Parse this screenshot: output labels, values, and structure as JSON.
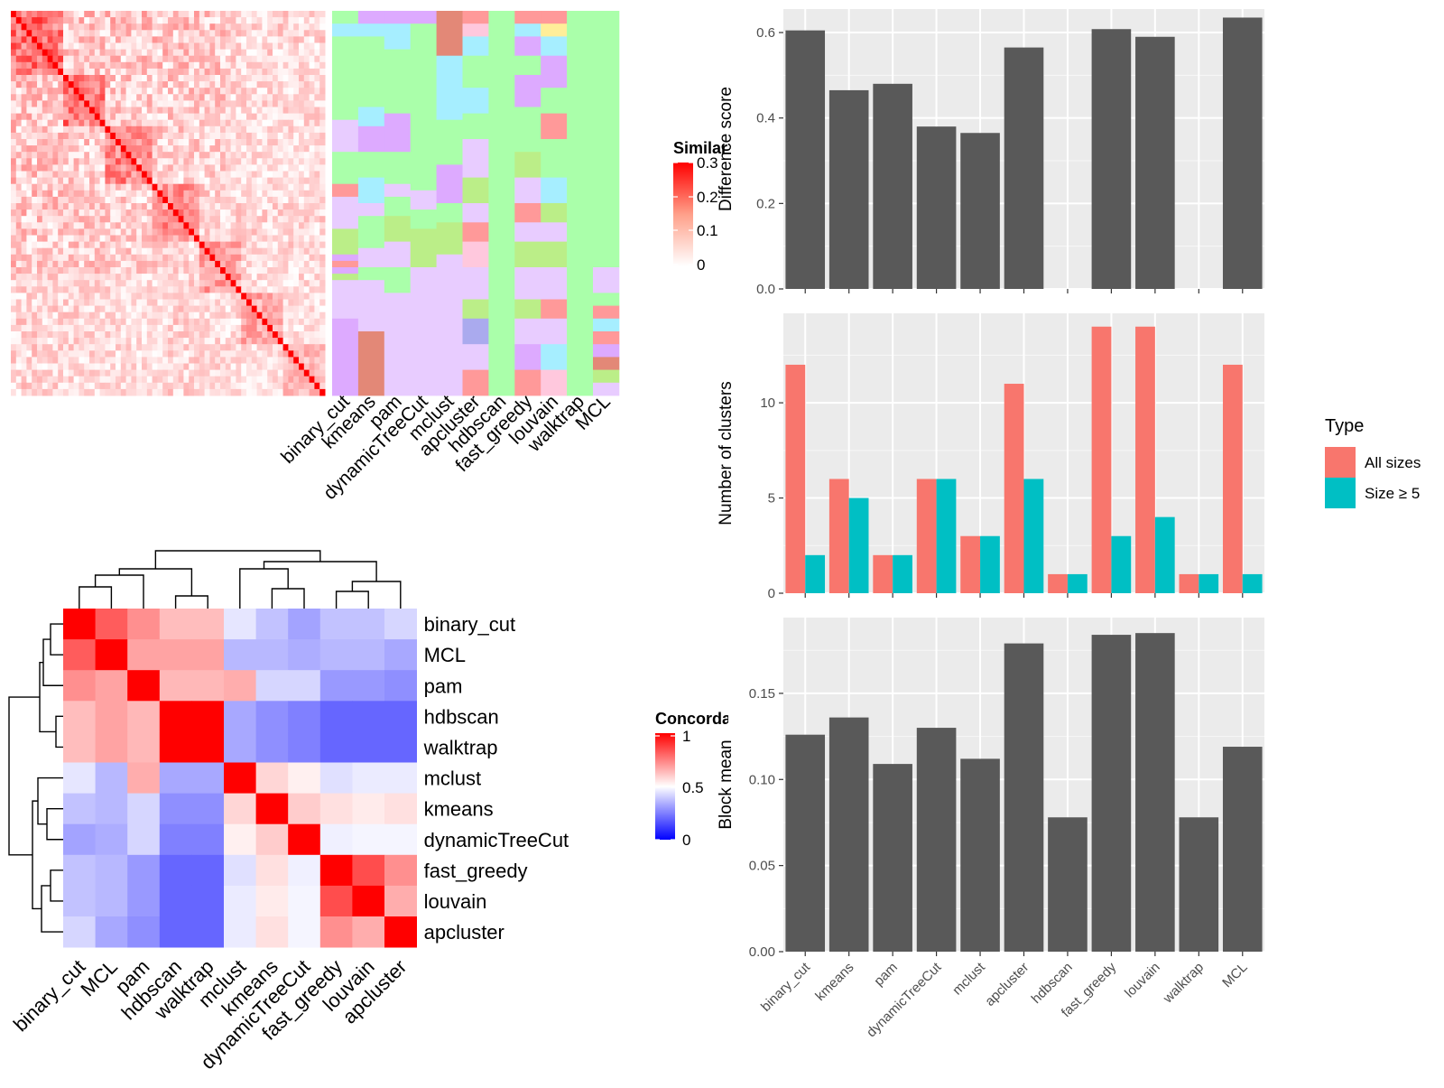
{
  "methods": [
    "binary_cut",
    "kmeans",
    "pam",
    "dynamicTreeCut",
    "mclust",
    "apcluster",
    "hdbscan",
    "fast_greedy",
    "louvain",
    "walktrap",
    "MCL"
  ],
  "similarity_heatmap": {
    "legend_title": "Similarity",
    "legend_ticks": [
      "0.3",
      "0.2",
      "0.1",
      "0"
    ],
    "low_color": "#ffffff",
    "high_color": "#ff0000"
  },
  "concordance_heatmap": {
    "legend_title": "Concordance",
    "legend_ticks": [
      "1",
      "0.5",
      "0"
    ],
    "low_color": "#0000ff",
    "mid_color": "#ffffff",
    "high_color": "#ff0000",
    "order": [
      "binary_cut",
      "MCL",
      "pam",
      "hdbscan",
      "walktrap",
      "mclust",
      "kmeans",
      "dynamicTreeCut",
      "fast_greedy",
      "louvain",
      "apcluster"
    ],
    "matrix": [
      [
        1.0,
        0.82,
        0.72,
        0.63,
        0.63,
        0.45,
        0.38,
        0.32,
        0.38,
        0.38,
        0.42
      ],
      [
        0.82,
        1.0,
        0.68,
        0.68,
        0.68,
        0.36,
        0.36,
        0.34,
        0.36,
        0.36,
        0.33
      ],
      [
        0.72,
        0.68,
        1.0,
        0.64,
        0.64,
        0.66,
        0.42,
        0.42,
        0.3,
        0.3,
        0.28
      ],
      [
        0.63,
        0.68,
        0.64,
        1.0,
        1.0,
        0.33,
        0.28,
        0.25,
        0.2,
        0.2,
        0.2
      ],
      [
        0.63,
        0.68,
        0.64,
        1.0,
        1.0,
        0.33,
        0.28,
        0.25,
        0.2,
        0.2,
        0.2
      ],
      [
        0.45,
        0.36,
        0.66,
        0.33,
        0.33,
        1.0,
        0.58,
        0.53,
        0.44,
        0.46,
        0.46
      ],
      [
        0.38,
        0.36,
        0.42,
        0.28,
        0.28,
        0.58,
        1.0,
        0.6,
        0.56,
        0.54,
        0.56
      ],
      [
        0.32,
        0.34,
        0.42,
        0.25,
        0.25,
        0.53,
        0.6,
        1.0,
        0.47,
        0.48,
        0.48
      ],
      [
        0.38,
        0.36,
        0.3,
        0.2,
        0.2,
        0.44,
        0.56,
        0.47,
        1.0,
        0.85,
        0.72
      ],
      [
        0.38,
        0.36,
        0.3,
        0.2,
        0.2,
        0.46,
        0.54,
        0.48,
        0.85,
        1.0,
        0.66
      ],
      [
        0.42,
        0.33,
        0.28,
        0.2,
        0.2,
        0.46,
        0.56,
        0.48,
        0.72,
        0.66,
        1.0
      ]
    ]
  },
  "chart_data": [
    {
      "type": "bar",
      "categories": [
        "binary_cut",
        "kmeans",
        "pam",
        "dynamicTreeCut",
        "mclust",
        "apcluster",
        "hdbscan",
        "fast_greedy",
        "louvain",
        "walktrap",
        "MCL"
      ],
      "values": [
        0.605,
        0.465,
        0.48,
        0.38,
        0.365,
        0.565,
        null,
        0.608,
        0.59,
        null,
        0.635
      ],
      "ylabel": "Difference score",
      "ylim": [
        0,
        0.655
      ],
      "yticks": [
        "0.0",
        "0.2",
        "0.4",
        "0.6"
      ],
      "ytick_values": [
        0,
        0.2,
        0.4,
        0.6
      ],
      "bar_color": "#595959"
    },
    {
      "type": "bar",
      "categories": [
        "binary_cut",
        "kmeans",
        "pam",
        "dynamicTreeCut",
        "mclust",
        "apcluster",
        "hdbscan",
        "fast_greedy",
        "louvain",
        "walktrap",
        "MCL"
      ],
      "series": [
        {
          "name": "All sizes",
          "values": [
            12,
            6,
            2,
            6,
            3,
            11,
            1,
            14,
            14,
            1,
            12
          ],
          "color": "#F8766D"
        },
        {
          "name": "Size ≥ 5",
          "values": [
            2,
            5,
            2,
            6,
            3,
            6,
            1,
            3,
            4,
            1,
            1
          ],
          "color": "#00BFC4"
        }
      ],
      "ylabel": "Number of clusters",
      "ylim": [
        0,
        14.7
      ],
      "yticks": [
        "0",
        "5",
        "10"
      ],
      "ytick_values": [
        0,
        5,
        10
      ],
      "legend_title": "Type"
    },
    {
      "type": "bar",
      "categories": [
        "binary_cut",
        "kmeans",
        "pam",
        "dynamicTreeCut",
        "mclust",
        "apcluster",
        "hdbscan",
        "fast_greedy",
        "louvain",
        "walktrap",
        "MCL"
      ],
      "values": [
        0.126,
        0.136,
        0.109,
        0.13,
        0.112,
        0.179,
        0.078,
        0.184,
        0.185,
        0.078,
        0.119
      ],
      "ylabel": "Block mean",
      "ylim": [
        0,
        0.194
      ],
      "yticks": [
        "0.00",
        "0.05",
        "0.10",
        "0.15"
      ],
      "ytick_values": [
        0,
        0.05,
        0.1,
        0.15
      ],
      "bar_color": "#595959"
    }
  ],
  "cluster_palette": [
    "#AAFFAA",
    "#A6EEFF",
    "#DDAAFF",
    "#E8CCFF",
    "#FF9999",
    "#FFC8DD",
    "#BBEE88",
    "#E38877",
    "#FFEE99",
    "#AAAAEE",
    "#FF7777"
  ]
}
